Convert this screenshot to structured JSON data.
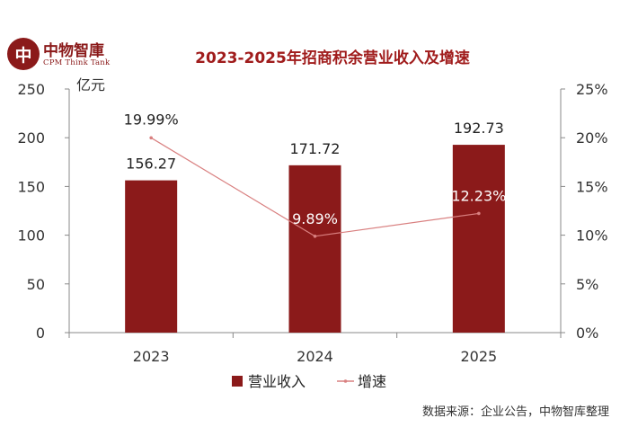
{
  "logo": {
    "mark": "中",
    "cn": "中物智庫",
    "en": "CPM Think Tank"
  },
  "title": "2023-2025年招商积余营业收入及增速",
  "source": "数据来源：企业公告，中物智库整理",
  "colors": {
    "bar": "#8b1a1a",
    "line": "#d98080",
    "title": "#a01c1c"
  },
  "chart_data": {
    "type": "bar",
    "title": "2023-2025年招商积余营业收入及增速",
    "categories": [
      "2023",
      "2024",
      "2025"
    ],
    "ylabel": "亿元",
    "ylim": [
      0,
      250
    ],
    "yticks": [
      "0",
      "50",
      "100",
      "150",
      "200",
      "250"
    ],
    "y2lim": [
      0,
      25
    ],
    "y2ticks": [
      "0%",
      "5%",
      "10%",
      "15%",
      "20%",
      "25%"
    ],
    "grid": false,
    "legend": "bottom",
    "series": [
      {
        "name": "营业收入",
        "type": "bar",
        "axis": "left",
        "values": [
          156.27,
          171.72,
          192.73
        ],
        "labels": [
          "156.27",
          "171.72",
          "192.73"
        ]
      },
      {
        "name": "增速",
        "type": "line",
        "axis": "right",
        "values": [
          19.99,
          9.89,
          12.23
        ],
        "labels": [
          "19.99%",
          "9.89%",
          "12.23%"
        ]
      }
    ]
  }
}
